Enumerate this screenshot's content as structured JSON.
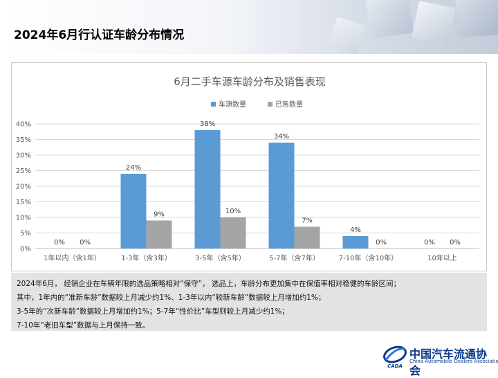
{
  "page": {
    "title": "2024年6月行认证车龄分布情况"
  },
  "chart_data": {
    "type": "bar",
    "title": "6月二手车源车龄分布及销售表现",
    "categories": [
      "1年以内（含1年）",
      "1-3年（含3年）",
      "3-5年（含5年）",
      "5-7年（含7年）",
      "7-10年（含10年）",
      "10年以上"
    ],
    "series": [
      {
        "name": "车源数量",
        "color": "#5b9bd5",
        "values": [
          0,
          24,
          38,
          34,
          4,
          0
        ],
        "labels": [
          "0%",
          "24%",
          "38%",
          "34%",
          "4%",
          "0%"
        ]
      },
      {
        "name": "已售数量",
        "color": "#a5a5a5",
        "values": [
          0,
          9,
          10,
          7,
          0,
          0
        ],
        "labels": [
          "0%",
          "9%",
          "10%",
          "7%",
          "0%",
          "0%"
        ]
      }
    ],
    "y_ticks": [
      "0%",
      "5%",
      "10%",
      "15%",
      "20%",
      "25%",
      "30%",
      "35%",
      "40%"
    ],
    "ylim": [
      0,
      40
    ],
    "grid": true,
    "legend": "top-center"
  },
  "notes": [
    "2024年6月， 经销企业在车辆年限的选品策略相对“保守”， 选品上，车龄分布更加集中在保值率相对稳健的车龄区间；",
    "其中，1年内的“准新车龄”数据较上月减少约1%、1-3年以内“较新车龄”数据较上月增加约1%；",
    "3-5年的“次新车龄”数据较上月增加约1%；5-7年“性价比”车型则较上月减少约1%；",
    "7-10年“老旧车型”数据与上月保持一致。"
  ],
  "logo": {
    "name_cn": "中国汽车流通协会",
    "name_en": "China Automobile Dealers Association",
    "mark_text": "CADA"
  }
}
